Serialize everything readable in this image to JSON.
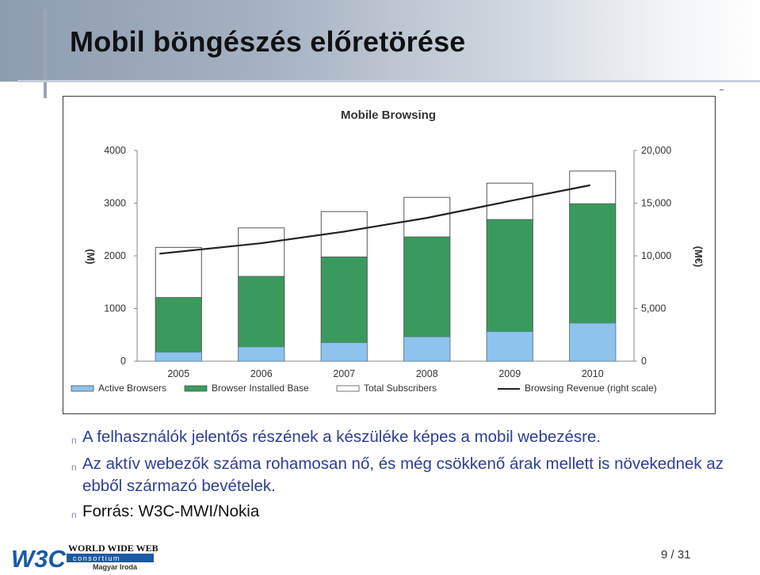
{
  "slide": {
    "title": "Mobil böngészés előretörése",
    "page": "9 / 31",
    "logo": {
      "w3c": "W3C",
      "line1": "WORLD WIDE WEB",
      "line2": "consortium",
      "line3": "Magyar Iroda"
    }
  },
  "bullets": [
    {
      "text": "A felhasználók jelentős részének a készüléke képes a mobil webezésre.",
      "style": "accent"
    },
    {
      "text": "Az aktív webezők száma rohamosan nő, és még csökkenő árak mellett is növekednek az ebből származó bevételek.",
      "style": "accent"
    },
    {
      "text": "Forrás: W3C-MWI/Nokia",
      "style": "dark"
    }
  ],
  "chart_data": {
    "type": "bar",
    "title": "Mobile Browsing",
    "categories": [
      "2005",
      "2006",
      "2007",
      "2008",
      "2009",
      "2010"
    ],
    "ylabel": "(M)",
    "ylabel_right": "(M€)",
    "ylim": [
      0,
      4000
    ],
    "yticks": [
      "0",
      "1000",
      "2000",
      "3000",
      "4000"
    ],
    "ylim_right": [
      0,
      20000
    ],
    "yticks_right": [
      "0",
      "5,000",
      "10,000",
      "15,000",
      "20,000"
    ],
    "series": [
      {
        "name": "Active Browsers",
        "kind": "bar",
        "color": "#8dc3ec",
        "values": [
          170,
          270,
          350,
          460,
          560,
          720
        ]
      },
      {
        "name": "Browser Installed Base",
        "kind": "bar",
        "color": "#3a9a5d",
        "values": [
          1210,
          1610,
          1980,
          2360,
          2690,
          2990
        ]
      },
      {
        "name": "Total Subscribers",
        "kind": "bar",
        "color": "#ffffff",
        "values": [
          2160,
          2530,
          2840,
          3110,
          3380,
          3610
        ]
      },
      {
        "name": "Browsing Revenue (right scale)",
        "kind": "line",
        "color": "#222222",
        "axis": "right",
        "values": [
          10200,
          11200,
          12300,
          13600,
          15200,
          16700
        ]
      }
    ],
    "grid": false,
    "legend": "bottom"
  }
}
